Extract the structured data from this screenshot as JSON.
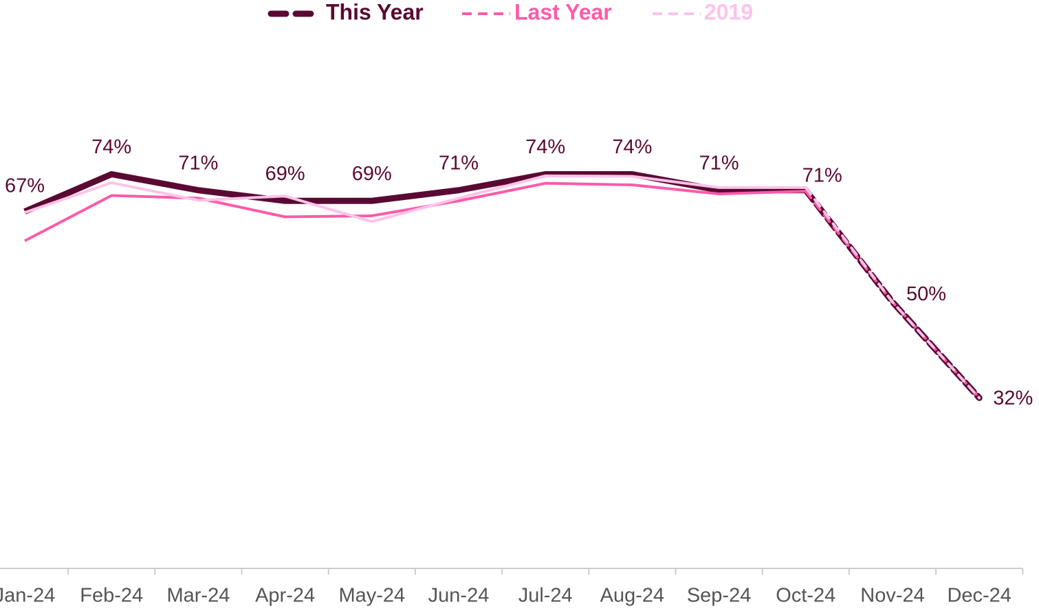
{
  "chart_data": {
    "type": "line",
    "categories": [
      "Jan-24",
      "Feb-24",
      "Mar-24",
      "Apr-24",
      "May-24",
      "Jun-24",
      "Jul-24",
      "Aug-24",
      "Sep-24",
      "Oct-24",
      "Nov-24",
      "Dec-24"
    ],
    "series": [
      {
        "name": "This Year",
        "color": "#5a0a32",
        "values": [
          67,
          74,
          71,
          69,
          69,
          71,
          74,
          74,
          71,
          71,
          50,
          32
        ],
        "value_labels": [
          "67%",
          "74%",
          "71%",
          "69%",
          "69%",
          "71%",
          "74%",
          "74%",
          "71%",
          "71%",
          "50%",
          "32%"
        ]
      },
      {
        "name": "Last Year",
        "color": "#ff5aa8",
        "values": [
          61.5,
          70,
          69.5,
          66,
          66.2,
          69,
          72.3,
          72,
          70.3,
          70.8,
          50,
          32
        ]
      },
      {
        "name": "2019",
        "color": "#ffc2ea",
        "values": [
          66.8,
          72.4,
          69.1,
          69.9,
          65.1,
          69.5,
          73.7,
          73.6,
          71.5,
          71.5,
          50,
          32
        ]
      }
    ],
    "dashed_from_index": 9,
    "ylim": [
      0,
      100
    ],
    "legend": "top"
  }
}
